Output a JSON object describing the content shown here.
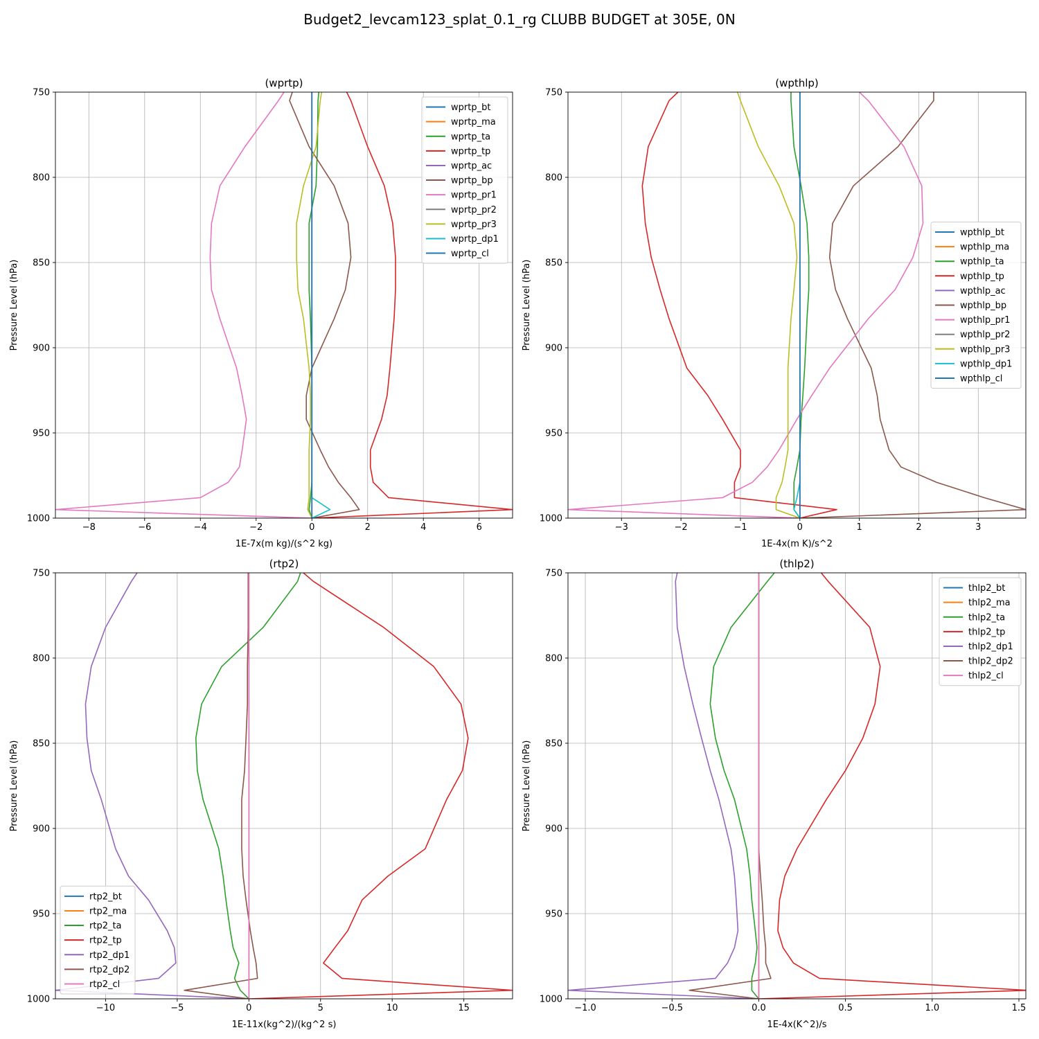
{
  "figure": {
    "title": "Budget2_levcam123_splat_0.1_rg CLUBB BUDGET at 305E, 0N"
  },
  "chart_data": [
    {
      "type": "line",
      "title": "(wprtp)",
      "xlabel": "1E-7x(m kg)/(s^2 kg)",
      "ylabel": "Pressure Level (hPa)",
      "xlim": [
        -9.2,
        7.2
      ],
      "ylim": [
        1000,
        750
      ],
      "xticks": [
        -8,
        -6,
        -4,
        -2,
        0,
        2,
        4,
        6
      ],
      "yticks": [
        750,
        800,
        850,
        900,
        950,
        1000
      ],
      "grid": true,
      "legend_position": "upper-right",
      "pressure": [
        750,
        755,
        782,
        805,
        827,
        847,
        866,
        883,
        912,
        928,
        942,
        960,
        970,
        979,
        988,
        995,
        1000
      ],
      "series": [
        {
          "name": "wprtp_bt",
          "color": "#1f77b4",
          "values": [
            0,
            0,
            0,
            0,
            0,
            0,
            0,
            0,
            0,
            0,
            0,
            0,
            0,
            0,
            0,
            0,
            0
          ]
        },
        {
          "name": "wprtp_ma",
          "color": "#ff7f0e",
          "values": [
            0,
            0,
            0,
            0,
            0,
            0,
            0,
            0,
            0,
            0,
            0,
            0,
            0,
            0,
            0,
            0,
            0
          ]
        },
        {
          "name": "wprtp_ta",
          "color": "#2ca02c",
          "values": [
            0.25,
            0.22,
            0.2,
            0.15,
            -0.1,
            -0.1,
            -0.1,
            -0.05,
            0,
            0,
            0,
            0,
            0,
            0,
            -0.05,
            -0.1,
            0
          ]
        },
        {
          "name": "wprtp_tp",
          "color": "#d62728",
          "values": [
            1.25,
            1.4,
            2.0,
            2.6,
            2.9,
            3.0,
            3.0,
            2.95,
            2.8,
            2.7,
            2.5,
            2.1,
            2.1,
            2.2,
            2.75,
            7.2,
            0
          ]
        },
        {
          "name": "wprtp_ac",
          "color": "#9467bd",
          "values": [
            0,
            0,
            0,
            0,
            0,
            0,
            0,
            0,
            0,
            0,
            0,
            0,
            0,
            0,
            0,
            0,
            0
          ]
        },
        {
          "name": "wprtp_bp",
          "color": "#8c564b",
          "values": [
            -0.7,
            -0.8,
            -0.1,
            0.8,
            1.3,
            1.4,
            1.2,
            0.8,
            0,
            -0.2,
            -0.2,
            0.3,
            0.6,
            0.95,
            1.4,
            1.7,
            0
          ]
        },
        {
          "name": "wprtp_pr1",
          "color": "#e377c2",
          "values": [
            -1.0,
            -1.2,
            -2.4,
            -3.3,
            -3.6,
            -3.65,
            -3.6,
            -3.3,
            -2.7,
            -2.5,
            -2.35,
            -2.5,
            -2.6,
            -3.0,
            -4.0,
            -9.2,
            0
          ]
        },
        {
          "name": "wprtp_pr2",
          "color": "#7f7f7f",
          "values": [
            0,
            0,
            0,
            0,
            0,
            0,
            0,
            0,
            0,
            0,
            0,
            0,
            0,
            0,
            0,
            0,
            0
          ]
        },
        {
          "name": "wprtp_pr3",
          "color": "#bcbd22",
          "values": [
            0.35,
            0.3,
            0.15,
            -0.3,
            -0.55,
            -0.55,
            -0.5,
            -0.3,
            -0.1,
            -0.05,
            -0.05,
            -0.1,
            -0.1,
            -0.1,
            -0.1,
            -0.15,
            0
          ]
        },
        {
          "name": "wprtp_dp1",
          "color": "#17becf",
          "values": [
            0,
            0,
            0,
            0,
            0,
            0,
            0,
            0,
            0,
            0,
            0,
            0,
            0,
            0,
            0,
            0.65,
            0
          ]
        },
        {
          "name": "wprtp_cl",
          "color": "#1f77b4",
          "values": [
            0,
            0,
            0,
            0,
            0,
            0,
            0,
            0,
            0,
            0,
            0,
            0,
            0,
            0,
            0,
            0,
            0
          ]
        }
      ]
    },
    {
      "type": "line",
      "title": "(wpthlp)",
      "xlabel": "1E-4x(m K)/s^2",
      "ylabel": "Pressure Level (hPa)",
      "xlim": [
        -3.9,
        3.8
      ],
      "ylim": [
        1000,
        750
      ],
      "xticks": [
        -3,
        -2,
        -1,
        0,
        1,
        2,
        3
      ],
      "yticks": [
        750,
        800,
        850,
        900,
        950,
        1000
      ],
      "grid": true,
      "legend_position": "center-right",
      "pressure": [
        750,
        755,
        782,
        805,
        827,
        847,
        866,
        883,
        912,
        928,
        942,
        960,
        970,
        979,
        988,
        995,
        1000
      ],
      "series": [
        {
          "name": "wpthlp_bt",
          "color": "#1f77b4",
          "values": [
            0,
            0,
            0,
            0,
            0,
            0,
            0,
            0,
            0,
            0,
            0,
            0,
            0,
            0,
            0,
            0,
            0
          ]
        },
        {
          "name": "wpthlp_ma",
          "color": "#ff7f0e",
          "values": [
            0,
            0,
            0,
            0,
            0,
            0,
            0,
            0,
            0,
            0,
            0,
            0,
            0,
            0,
            0,
            0,
            0
          ]
        },
        {
          "name": "wpthlp_ta",
          "color": "#2ca02c",
          "values": [
            -0.15,
            -0.15,
            -0.1,
            0.02,
            0.12,
            0.15,
            0.15,
            0.12,
            0.08,
            0.05,
            0.02,
            0,
            -0.05,
            -0.1,
            -0.1,
            -0.1,
            0
          ]
        },
        {
          "name": "wpthlp_tp",
          "color": "#d62728",
          "values": [
            -2.05,
            -2.2,
            -2.55,
            -2.65,
            -2.6,
            -2.5,
            -2.35,
            -2.2,
            -1.9,
            -1.55,
            -1.3,
            -1.0,
            -1.0,
            -1.1,
            -1.1,
            0.62,
            0
          ]
        },
        {
          "name": "wpthlp_ac",
          "color": "#9467bd",
          "values": [
            0,
            0,
            0,
            0,
            0,
            0,
            0,
            0,
            0,
            0,
            0,
            0,
            0,
            0,
            0,
            0,
            0
          ]
        },
        {
          "name": "wpthlp_bp",
          "color": "#8c564b",
          "values": [
            2.25,
            2.25,
            1.65,
            0.9,
            0.55,
            0.5,
            0.6,
            0.8,
            1.2,
            1.3,
            1.35,
            1.5,
            1.7,
            2.3,
            3.1,
            3.8,
            0
          ]
        },
        {
          "name": "wpthlp_pr1",
          "color": "#e377c2",
          "values": [
            1.0,
            1.15,
            1.75,
            2.05,
            2.07,
            1.9,
            1.6,
            1.15,
            0.5,
            0.2,
            -0.05,
            -0.35,
            -0.55,
            -0.8,
            -1.3,
            -3.9,
            0
          ]
        },
        {
          "name": "wpthlp_pr2",
          "color": "#7f7f7f",
          "values": [
            0,
            0,
            0,
            0,
            0,
            0,
            0,
            0,
            0,
            0,
            0,
            0,
            0,
            0,
            0,
            0,
            0
          ]
        },
        {
          "name": "wpthlp_pr3",
          "color": "#bcbd22",
          "values": [
            -1.05,
            -1.0,
            -0.7,
            -0.35,
            -0.1,
            -0.05,
            -0.1,
            -0.15,
            -0.2,
            -0.2,
            -0.2,
            -0.2,
            -0.25,
            -0.3,
            -0.4,
            -0.4,
            0
          ]
        },
        {
          "name": "wpthlp_dp1",
          "color": "#17becf",
          "values": [
            0,
            0,
            0,
            0,
            0,
            0,
            0,
            0,
            0,
            0,
            0,
            0,
            0,
            0,
            -0.05,
            -0.1,
            0
          ]
        },
        {
          "name": "wpthlp_cl",
          "color": "#1f77b4",
          "values": [
            0,
            0,
            0,
            0,
            0,
            0,
            0,
            0,
            0,
            0,
            0,
            0,
            0,
            0,
            0,
            0,
            0
          ]
        }
      ]
    },
    {
      "type": "line",
      "title": "(rtp2)",
      "xlabel": "1E-11x(kg^2)/(kg^2 s)",
      "ylabel": "Pressure Level (hPa)",
      "xlim": [
        -13.5,
        18.4
      ],
      "ylim": [
        1000,
        750
      ],
      "xticks": [
        -10,
        -5,
        0,
        5,
        10,
        15
      ],
      "yticks": [
        750,
        800,
        850,
        900,
        950,
        1000
      ],
      "grid": true,
      "legend_position": "lower-left",
      "pressure": [
        750,
        755,
        782,
        805,
        827,
        847,
        866,
        883,
        912,
        928,
        942,
        960,
        970,
        979,
        988,
        995,
        1000
      ],
      "series": [
        {
          "name": "rtp2_bt",
          "color": "#1f77b4",
          "values": [
            0,
            0,
            0,
            0,
            0,
            0,
            0,
            0,
            0,
            0,
            0,
            0,
            0,
            0,
            0,
            0,
            0
          ]
        },
        {
          "name": "rtp2_ma",
          "color": "#ff7f0e",
          "values": [
            0,
            0,
            0,
            0,
            0,
            0,
            0,
            0,
            0,
            0,
            0,
            0,
            0,
            0,
            0,
            0,
            0
          ]
        },
        {
          "name": "rtp2_ta",
          "color": "#2ca02c",
          "values": [
            3.6,
            3.4,
            1.0,
            -1.9,
            -3.3,
            -3.7,
            -3.6,
            -3.2,
            -2.1,
            -1.8,
            -1.6,
            -1.3,
            -1.1,
            -0.7,
            -1.0,
            -0.6,
            0
          ]
        },
        {
          "name": "rtp2_tp",
          "color": "#d62728",
          "values": [
            3.8,
            4.5,
            9.4,
            12.9,
            14.8,
            15.3,
            14.9,
            13.8,
            12.3,
            9.7,
            7.9,
            6.9,
            6.0,
            5.2,
            6.5,
            18.4,
            0
          ]
        },
        {
          "name": "rtp2_dp1",
          "color": "#9467bd",
          "values": [
            -7.8,
            -8.2,
            -10.0,
            -11.0,
            -11.4,
            -11.3,
            -11.0,
            -10.3,
            -9.3,
            -8.4,
            -7.0,
            -5.7,
            -5.2,
            -5.1,
            -6.3,
            -13.5,
            0
          ]
        },
        {
          "name": "rtp2_dp2",
          "color": "#8c564b",
          "values": [
            -0.05,
            -0.05,
            -0.05,
            -0.1,
            -0.1,
            -0.2,
            -0.3,
            -0.5,
            -0.5,
            -0.4,
            -0.2,
            0.1,
            0.3,
            0.5,
            0.6,
            -4.5,
            0
          ]
        },
        {
          "name": "rtp2_cl",
          "color": "#e377c2",
          "values": [
            0,
            0,
            0,
            0,
            0,
            0,
            0,
            0,
            0,
            0,
            0,
            0,
            0,
            0,
            0,
            0,
            0
          ]
        }
      ]
    },
    {
      "type": "line",
      "title": "(thlp2)",
      "xlabel": "1E-4x(K^2)/s",
      "ylabel": "Pressure Level (hPa)",
      "xlim": [
        -1.1,
        1.54
      ],
      "ylim": [
        1000,
        750
      ],
      "xticks": [
        -1.0,
        -0.5,
        0.0,
        0.5,
        1.0,
        1.5
      ],
      "yticks": [
        750,
        800,
        850,
        900,
        950,
        1000
      ],
      "grid": true,
      "legend_position": "upper-right",
      "pressure": [
        750,
        755,
        782,
        805,
        827,
        847,
        866,
        883,
        912,
        928,
        942,
        960,
        970,
        979,
        988,
        995,
        1000
      ],
      "series": [
        {
          "name": "thlp2_bt",
          "color": "#1f77b4",
          "values": [
            0,
            0,
            0,
            0,
            0,
            0,
            0,
            0,
            0,
            0,
            0,
            0,
            0,
            0,
            0,
            0,
            0
          ]
        },
        {
          "name": "thlp2_ma",
          "color": "#ff7f0e",
          "values": [
            0,
            0,
            0,
            0,
            0,
            0,
            0,
            0,
            0,
            0,
            0,
            0,
            0,
            0,
            0,
            0,
            0
          ]
        },
        {
          "name": "thlp2_ta",
          "color": "#2ca02c",
          "values": [
            0.09,
            0.05,
            -0.16,
            -0.26,
            -0.28,
            -0.25,
            -0.2,
            -0.14,
            -0.07,
            -0.05,
            -0.04,
            -0.02,
            -0.01,
            -0.02,
            -0.04,
            -0.04,
            0
          ]
        },
        {
          "name": "thlp2_tp",
          "color": "#d62728",
          "values": [
            0.36,
            0.4,
            0.64,
            0.7,
            0.67,
            0.6,
            0.5,
            0.39,
            0.22,
            0.15,
            0.12,
            0.11,
            0.14,
            0.2,
            0.35,
            1.55,
            0
          ]
        },
        {
          "name": "thlp2_dp1",
          "color": "#9467bd",
          "values": [
            -0.47,
            -0.48,
            -0.47,
            -0.43,
            -0.38,
            -0.33,
            -0.28,
            -0.23,
            -0.16,
            -0.14,
            -0.13,
            -0.12,
            -0.14,
            -0.18,
            -0.25,
            -1.1,
            0
          ]
        },
        {
          "name": "thlp2_dp2",
          "color": "#8c564b",
          "values": [
            0,
            0,
            0,
            0,
            0,
            0,
            0,
            0,
            0,
            0.01,
            0.02,
            0.03,
            0.04,
            0.04,
            0.07,
            -0.4,
            0
          ]
        },
        {
          "name": "thlp2_cl",
          "color": "#e377c2",
          "values": [
            0,
            0,
            0,
            0,
            0,
            0,
            0,
            0,
            0,
            0,
            0,
            0,
            0,
            0,
            0,
            0,
            0
          ]
        }
      ]
    }
  ]
}
